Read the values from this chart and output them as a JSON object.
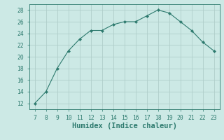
{
  "x": [
    7,
    8,
    9,
    10,
    11,
    12,
    13,
    14,
    15,
    16,
    17,
    18,
    19,
    20,
    21,
    22,
    23
  ],
  "y": [
    12,
    14,
    18,
    21,
    23,
    24.5,
    24.5,
    25.5,
    26,
    26,
    27,
    28,
    27.5,
    26,
    24.5,
    22.5,
    21
  ],
  "line_color": "#2d7a6e",
  "marker": "D",
  "marker_size": 2.2,
  "bg_color": "#cce9e5",
  "grid_color": "#b0ceca",
  "tick_color": "#2d7a6e",
  "xlabel": "Humidex (Indice chaleur)",
  "xlabel_fontsize": 7.5,
  "xlim": [
    6.5,
    23.5
  ],
  "ylim": [
    11,
    29
  ],
  "yticks": [
    12,
    14,
    16,
    18,
    20,
    22,
    24,
    26,
    28
  ],
  "xticks": [
    7,
    8,
    9,
    10,
    11,
    12,
    13,
    14,
    15,
    16,
    17,
    18,
    19,
    20,
    21,
    22,
    23
  ],
  "tick_fontsize": 5.8
}
